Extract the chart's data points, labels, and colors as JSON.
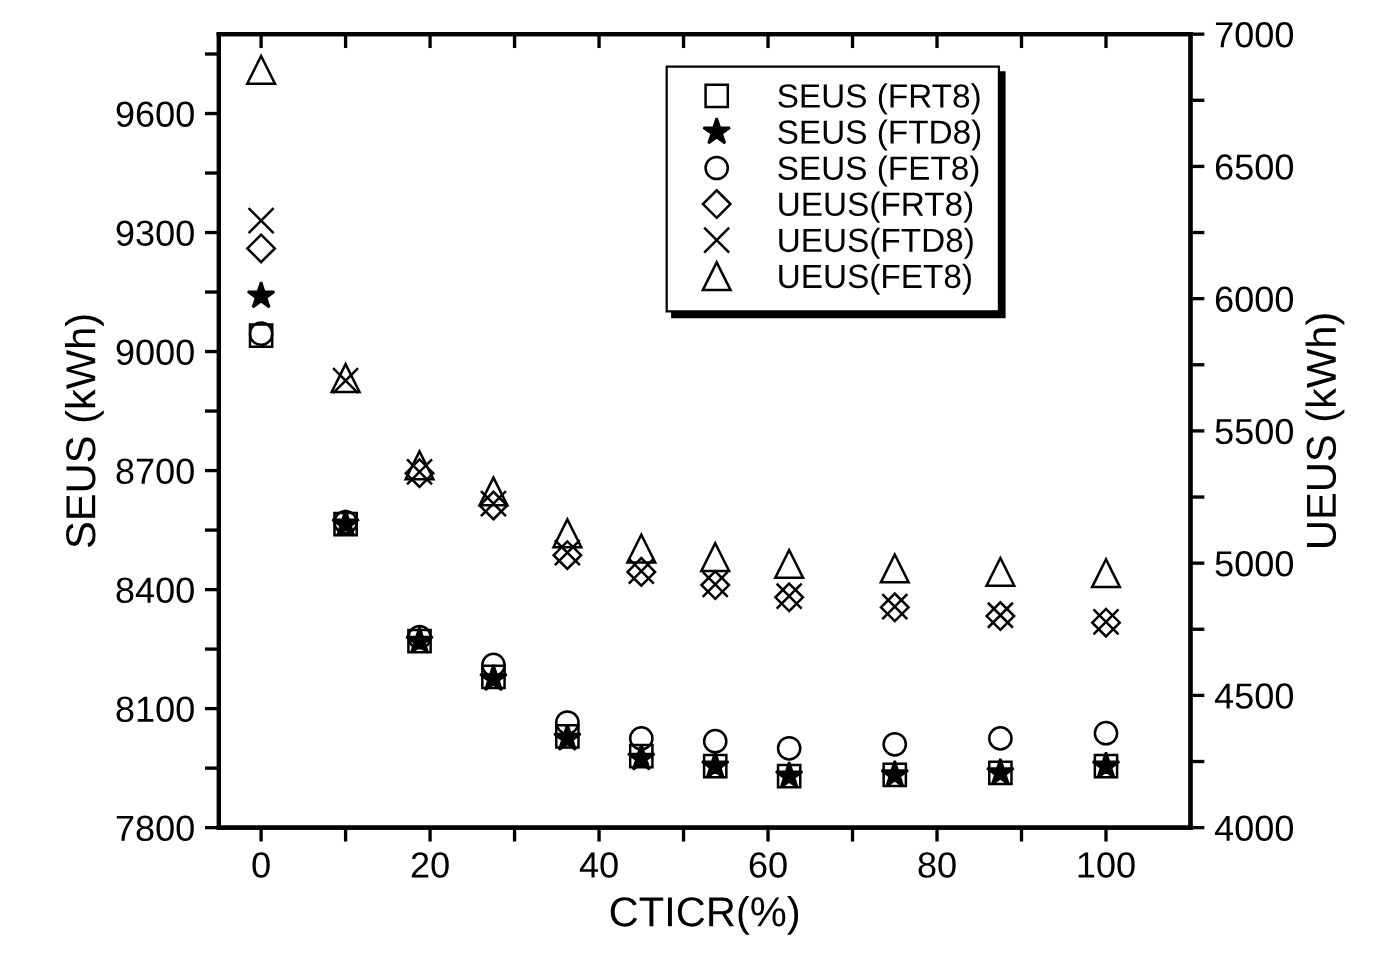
{
  "chart_data": {
    "type": "scatter",
    "xlabel": "CTICR(%)",
    "ylabel": "SEUS (kWh)",
    "y2label": "UEUS (kWh)",
    "x": [
      0,
      10,
      18.75,
      27.5,
      36.25,
      45,
      53.75,
      62.5,
      75,
      87.5,
      100
    ],
    "series": [
      {
        "name": "SEUS (FRT8)",
        "color": "#000000",
        "marker": "square",
        "values": [
          9040,
          8565,
          8270,
          8180,
          8030,
          7980,
          7955,
          7930,
          7933,
          7938,
          7955
        ]
      },
      {
        "name": "SEUS (FTD8)",
        "color": "#000000",
        "marker": "star",
        "values": [
          9140,
          8565,
          8270,
          8175,
          8025,
          7975,
          7955,
          7930,
          7933,
          7938,
          7955
        ]
      },
      {
        "name": "SEUS (FET8)",
        "color": "#000000",
        "marker": "circle",
        "values": [
          9045,
          8570,
          8280,
          8210,
          8065,
          8025,
          8018,
          8000,
          8010,
          8025,
          8038
        ]
      },
      {
        "name": "UEUS(FRT8)",
        "color": "#000000",
        "marker": "diamond",
        "axis": "y2",
        "values": [
          6190,
          null,
          5340,
          5218,
          5030,
          4967,
          4917,
          4871,
          4833,
          4800,
          4775
        ]
      },
      {
        "name": "UEUS(FTD8)",
        "color": "#000000",
        "marker": "cross",
        "axis": "y2",
        "values": [
          6295,
          5690,
          5345,
          5225,
          5040,
          4970,
          4920,
          4875,
          4836,
          4803,
          4778
        ]
      },
      {
        "name": "UEUS(FET8)",
        "color": "#000000",
        "marker": "triangle",
        "axis": "y2",
        "values": [
          6865,
          5700,
          5370,
          5271,
          5113,
          5055,
          5023,
          4997,
          4980,
          4967,
          4962
        ]
      }
    ],
    "xlim": [
      -5,
      110
    ],
    "xticks": [
      0,
      {
        "value": 10,
        "label": null
      },
      20,
      {
        "value": 30,
        "label": null
      },
      40,
      {
        "value": 50,
        "label": null
      },
      60,
      {
        "value": 70,
        "label": null
      },
      80,
      {
        "value": 90,
        "label": null
      },
      100
    ],
    "ylim": [
      7800,
      9800
    ],
    "yticks": [
      7800,
      {
        "value": 7950,
        "label": null
      },
      8100,
      {
        "value": 8250,
        "label": null
      },
      8400,
      {
        "value": 8550,
        "label": null
      },
      8700,
      {
        "value": 8850,
        "label": null
      },
      9000,
      {
        "value": 9150,
        "label": null
      },
      9300,
      {
        "value": 9450,
        "label": null
      },
      9600,
      {
        "value": 9750,
        "label": null
      }
    ],
    "y2lim": [
      4000,
      7000
    ],
    "y2ticks": [
      4000,
      {
        "value": 4250,
        "label": null
      },
      4500,
      {
        "value": 4750,
        "label": null
      },
      5000,
      {
        "value": 5250,
        "label": null
      },
      5500,
      {
        "value": 5750,
        "label": null
      },
      6000,
      {
        "value": 6250,
        "label": null
      },
      6500,
      {
        "value": 6750,
        "label": null
      },
      7000
    ],
    "legend": "top right",
    "grid": false
  }
}
